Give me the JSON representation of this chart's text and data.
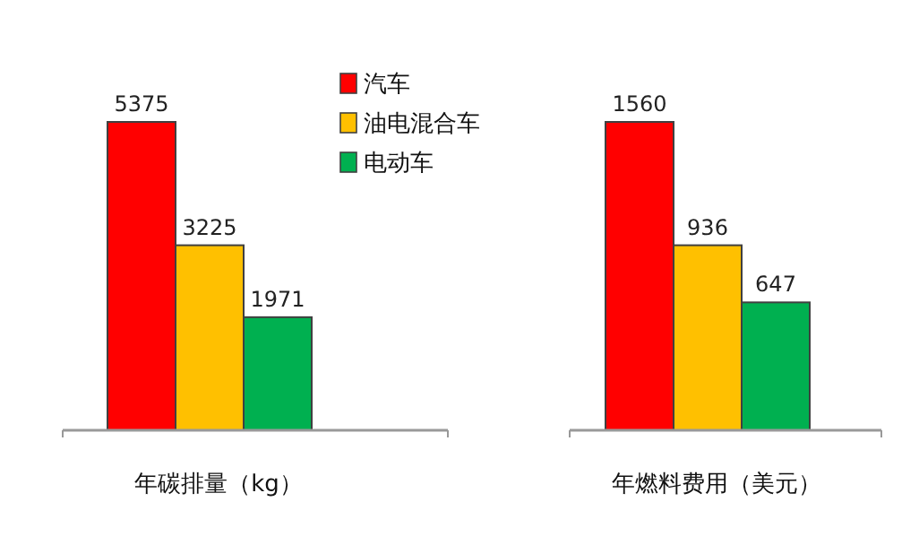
{
  "chart_data": [
    {
      "type": "bar",
      "categories": [
        null
      ],
      "xlabel": "年碳排量（kg）",
      "data_labels": true,
      "legend": "right",
      "series": [
        {
          "name": "汽车",
          "color": "#ff0000",
          "values": [
            5375
          ]
        },
        {
          "name": "油电混合车",
          "color": "#ffc000",
          "values": [
            3225
          ]
        },
        {
          "name": "电动车",
          "color": "#00b050",
          "values": [
            1971
          ]
        }
      ]
    },
    {
      "type": "bar",
      "categories": [
        null
      ],
      "xlabel": "年燃料费用（美元）",
      "data_labels": true,
      "legend": false,
      "series": [
        {
          "color": "#ff0000",
          "values": [
            1560
          ]
        },
        {
          "color": "#ffc000",
          "values": [
            936
          ]
        },
        {
          "color": "#00b050",
          "values": [
            647
          ]
        }
      ]
    }
  ]
}
